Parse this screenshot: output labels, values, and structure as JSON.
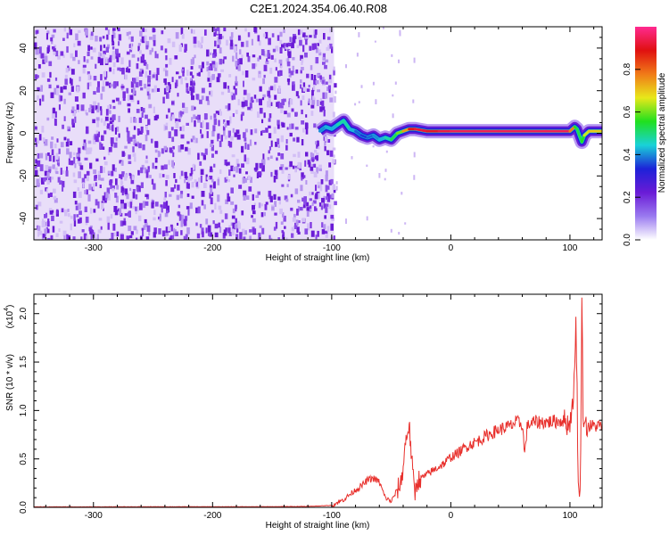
{
  "title": "C2E1.2024.354.06.40.R08",
  "colors": {
    "snr_line": "#e8302c",
    "spectrum_scatter": "#6a1bd6",
    "spectrum_ridge_outer": "#1d22d8",
    "spectrum_ridge_mid": "#19d2d8",
    "spectrum_ridge_core": "#e01010"
  },
  "chart_data": [
    {
      "type": "heatmap",
      "name": "spectrogram",
      "title": "C2E1.2024.354.06.40.R08",
      "xlabel": "Height of straight line (km)",
      "ylabel": "Frequency (Hz)",
      "xlim": [
        -350,
        127
      ],
      "ylim": [
        -50,
        50
      ],
      "xticks": [
        -300,
        -200,
        -100,
        0,
        100
      ],
      "xtick_labels": [
        "-300",
        "-200",
        "-100",
        "0",
        "100"
      ],
      "yticks": [
        -40,
        -20,
        0,
        20,
        40
      ],
      "ytick_labels": [
        "-40",
        "-20",
        "0",
        "20",
        "40"
      ],
      "noise_region_x": [
        -350,
        -98
      ],
      "ridge": {
        "x": [
          -110,
          -105,
          -100,
          -95,
          -90,
          -85,
          -80,
          -75,
          -70,
          -65,
          -60,
          -55,
          -50,
          -45,
          -40,
          -35,
          -30,
          -20,
          -10,
          0,
          20,
          40,
          60,
          80,
          100,
          104,
          106,
          108,
          110,
          112,
          116,
          120,
          127
        ],
        "freq": [
          1,
          3,
          2,
          4,
          6,
          2,
          1,
          -1,
          -2,
          -1,
          -3,
          -2,
          -3,
          0,
          1,
          2,
          2,
          1,
          1,
          1,
          1,
          1,
          1,
          1,
          1,
          3,
          2,
          -1,
          -4,
          -1,
          1,
          1,
          1
        ],
        "amplitude": [
          0.35,
          0.45,
          0.4,
          0.45,
          0.5,
          0.45,
          0.4,
          0.35,
          0.35,
          0.4,
          0.4,
          0.45,
          0.5,
          0.55,
          0.65,
          0.85,
          0.95,
          0.9,
          0.92,
          0.95,
          0.95,
          0.95,
          0.95,
          0.95,
          0.95,
          0.6,
          0.5,
          0.55,
          0.5,
          0.6,
          0.7,
          0.7,
          0.7
        ]
      },
      "colorbar": {
        "label": "Normalized spectral amplitude",
        "range": [
          0,
          1
        ],
        "ticks": [
          0.0,
          0.2,
          0.4,
          0.6,
          0.8
        ],
        "tick_labels": [
          "0.0",
          "0.2",
          "0.4",
          "0.6",
          "0.8"
        ],
        "colormap": [
          "#ffffff",
          "#9a7af0",
          "#6a1bd6",
          "#1d22d8",
          "#19d2d8",
          "#20e01e",
          "#e8e81a",
          "#f07a18",
          "#e01010",
          "#ff2a90"
        ]
      }
    },
    {
      "type": "line",
      "name": "snr",
      "xlabel": "Height of straight line (km)",
      "ylabel": "SNR (10 * v/v)",
      "y_multiplier": "(x10",
      "y_multiplier_exponent": "4",
      "y_multiplier_close": ")",
      "xlim": [
        -350,
        127
      ],
      "ylim": [
        0,
        2.2
      ],
      "xticks": [
        -300,
        -200,
        -100,
        0,
        100
      ],
      "xtick_labels": [
        "-300",
        "-200",
        "-100",
        "0",
        "100"
      ],
      "yticks": [
        0.0,
        0.5,
        1.0,
        1.5,
        2.0
      ],
      "ytick_labels": [
        "0.0",
        "0.5",
        "1.0",
        "1.5",
        "2.0"
      ],
      "series": [
        {
          "x": [
            -350,
            -300,
            -250,
            -200,
            -150,
            -120,
            -100,
            -90,
            -85,
            -80,
            -75,
            -70,
            -65,
            -60,
            -55,
            -50,
            -45,
            -42,
            -40,
            -38,
            -35,
            -32,
            -30,
            -28,
            -25,
            -20,
            -15,
            -10,
            -5,
            0,
            5,
            10,
            15,
            20,
            25,
            30,
            40,
            50,
            55,
            60,
            62,
            64,
            66,
            70,
            80,
            90,
            95,
            98,
            100,
            102,
            104,
            105,
            106,
            107,
            108,
            109,
            110,
            111,
            112,
            113,
            115,
            120,
            127
          ],
          "y": [
            0.005,
            0.005,
            0.006,
            0.006,
            0.007,
            0.01,
            0.02,
            0.08,
            0.13,
            0.18,
            0.22,
            0.28,
            0.3,
            0.26,
            0.1,
            0.06,
            0.18,
            0.25,
            0.42,
            0.68,
            0.86,
            0.35,
            0.15,
            0.28,
            0.3,
            0.34,
            0.38,
            0.42,
            0.46,
            0.52,
            0.55,
            0.6,
            0.64,
            0.67,
            0.7,
            0.74,
            0.8,
            0.84,
            0.88,
            0.86,
            0.55,
            0.82,
            0.86,
            0.88,
            0.88,
            0.89,
            0.9,
            0.86,
            0.88,
            1.05,
            1.35,
            2.0,
            1.2,
            0.2,
            0.05,
            0.5,
            2.2,
            1.0,
            0.9,
            0.85,
            0.84,
            0.84,
            0.84
          ]
        }
      ]
    }
  ]
}
